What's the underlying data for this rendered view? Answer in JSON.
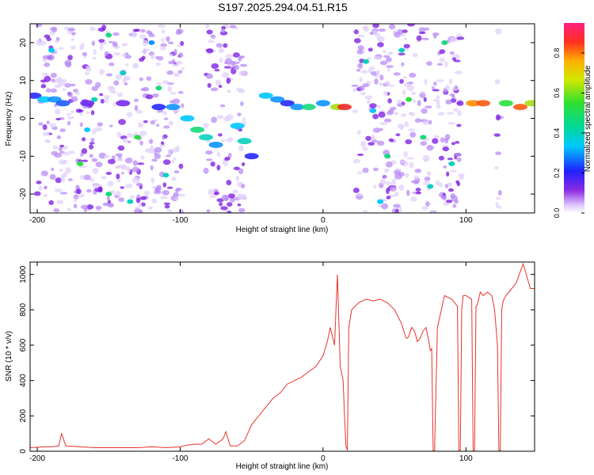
{
  "figure_title": "S197.2025.294.04.51.R15",
  "colors": {
    "snr_line": "#e8332c",
    "axis": "#000000",
    "spec_low": "#d9c8f5",
    "spec_mid": "#7a1fe0"
  },
  "chart_data": [
    {
      "type": "heatmap",
      "title": "S197.2025.294.04.51.R15",
      "xlabel": "Height of straight line (km)",
      "ylabel": "Frequency (Hz)",
      "xlim": [
        -205,
        148
      ],
      "ylim": [
        -25,
        25
      ],
      "xticks": [
        -200,
        -100,
        0,
        100
      ],
      "yticks": [
        -20,
        -10,
        0,
        10,
        20
      ],
      "colorbar": {
        "label": "Normalized spectral amplitude",
        "range": [
          0,
          0.95
        ],
        "ticks": [
          "0.0",
          "0.2",
          "0.4",
          "0.6",
          "0.8"
        ],
        "tick_values": [
          0,
          0.2,
          0.4,
          0.6,
          0.8
        ]
      },
      "noise_regions_km": [
        [
          -200,
          -178
        ],
        [
          -178,
          -98
        ],
        [
          -82,
          -55
        ],
        [
          22,
          97
        ],
        [
          121,
          124
        ]
      ],
      "noise_markers": [
        [
          -190,
          18,
          0.45
        ],
        [
          -170,
          -12,
          0.6
        ],
        [
          -160,
          5,
          0.5
        ],
        [
          -150,
          -20,
          0.55
        ],
        [
          -140,
          12,
          0.5
        ],
        [
          -130,
          -5,
          0.6
        ],
        [
          -120,
          20,
          0.4
        ],
        [
          -110,
          -15,
          0.5
        ],
        [
          -150,
          22,
          0.55
        ],
        [
          -165,
          -3,
          0.45
        ],
        [
          -135,
          -22,
          0.5
        ],
        [
          -115,
          8,
          0.55
        ],
        [
          30,
          15,
          0.5
        ],
        [
          45,
          -10,
          0.55
        ],
        [
          60,
          5,
          0.6
        ],
        [
          75,
          -18,
          0.5
        ],
        [
          85,
          20,
          0.55
        ],
        [
          40,
          -22,
          0.45
        ],
        [
          55,
          18,
          0.5
        ],
        [
          70,
          -5,
          0.55
        ],
        [
          90,
          -12,
          0.5
        ],
        [
          35,
          2,
          0.45
        ]
      ],
      "ridge": [
        {
          "x": -202,
          "y": 6,
          "a": 0.3
        },
        {
          "x": -195,
          "y": 5,
          "a": 0.45
        },
        {
          "x": -188,
          "y": 5,
          "a": 0.4
        },
        {
          "x": -182,
          "y": 4,
          "a": 0.35
        },
        {
          "x": -165,
          "y": 4,
          "a": 0.2
        },
        {
          "x": -140,
          "y": 4,
          "a": 0.18
        },
        {
          "x": -115,
          "y": 3,
          "a": 0.3
        },
        {
          "x": -105,
          "y": 3,
          "a": 0.4
        },
        {
          "x": -95,
          "y": 0,
          "a": 0.45
        },
        {
          "x": -88,
          "y": -3,
          "a": 0.55
        },
        {
          "x": -82,
          "y": -5,
          "a": 0.5
        },
        {
          "x": -75,
          "y": -7,
          "a": 0.4
        },
        {
          "x": -60,
          "y": -2,
          "a": 0.45
        },
        {
          "x": -55,
          "y": -6,
          "a": 0.5
        },
        {
          "x": -50,
          "y": -10,
          "a": 0.3
        },
        {
          "x": -40,
          "y": 6,
          "a": 0.45
        },
        {
          "x": -32,
          "y": 5,
          "a": 0.4
        },
        {
          "x": -25,
          "y": 4,
          "a": 0.3
        },
        {
          "x": -18,
          "y": 3,
          "a": 0.4
        },
        {
          "x": -10,
          "y": 3,
          "a": 0.55
        },
        {
          "x": 0,
          "y": 4,
          "a": 0.4
        },
        {
          "x": 10,
          "y": 3,
          "a": 0.7
        },
        {
          "x": 15,
          "y": 3,
          "a": 0.95
        },
        {
          "x": 105,
          "y": 4,
          "a": 0.85
        },
        {
          "x": 112,
          "y": 4,
          "a": 0.9
        },
        {
          "x": 128,
          "y": 4,
          "a": 0.6
        },
        {
          "x": 138,
          "y": 3,
          "a": 0.9
        },
        {
          "x": 146,
          "y": 4,
          "a": 0.7
        }
      ]
    },
    {
      "type": "line",
      "xlabel": "Height of straight line (km)",
      "ylabel": "SNR (10 * v/v)",
      "xlim": [
        -205,
        148
      ],
      "ylim": [
        0,
        1070
      ],
      "xticks": [
        -200,
        -100,
        0,
        100
      ],
      "yticks": [
        0,
        200,
        400,
        600,
        800,
        1000
      ],
      "series": [
        {
          "name": "SNR",
          "x": [
            -205,
            -195,
            -190,
            -185,
            -183,
            -180,
            -170,
            -160,
            -150,
            -140,
            -130,
            -120,
            -110,
            -100,
            -95,
            -90,
            -85,
            -80,
            -75,
            -70,
            -68,
            -65,
            -60,
            -55,
            -50,
            -45,
            -40,
            -35,
            -30,
            -25,
            -20,
            -15,
            -10,
            -5,
            0,
            3,
            5,
            8,
            10,
            12,
            14,
            15,
            16,
            17,
            18,
            20,
            25,
            30,
            35,
            40,
            45,
            50,
            55,
            58,
            59,
            60,
            62,
            64,
            66,
            68,
            70,
            72,
            74,
            75,
            76,
            77,
            78,
            80,
            85,
            90,
            94,
            95,
            96,
            97,
            98,
            100,
            102,
            104,
            105,
            106,
            107,
            108,
            110,
            112,
            115,
            118,
            120,
            122,
            123,
            124,
            125,
            126,
            128,
            130,
            135,
            140,
            145,
            148
          ],
          "y": [
            20,
            25,
            25,
            30,
            100,
            30,
            25,
            20,
            20,
            20,
            20,
            25,
            20,
            25,
            35,
            40,
            40,
            70,
            40,
            70,
            110,
            30,
            30,
            60,
            150,
            200,
            250,
            300,
            330,
            380,
            400,
            420,
            450,
            480,
            540,
            620,
            700,
            600,
            1000,
            480,
            400,
            200,
            30,
            5,
            700,
            800,
            840,
            860,
            850,
            860,
            840,
            800,
            720,
            640,
            640,
            650,
            700,
            680,
            620,
            640,
            680,
            700,
            620,
            570,
            580,
            5,
            5,
            700,
            880,
            860,
            820,
            5,
            5,
            800,
            880,
            880,
            870,
            860,
            5,
            5,
            820,
            830,
            900,
            880,
            900,
            880,
            800,
            600,
            5,
            5,
            800,
            850,
            880,
            900,
            950,
            1060,
            920,
            920
          ]
        }
      ]
    }
  ]
}
